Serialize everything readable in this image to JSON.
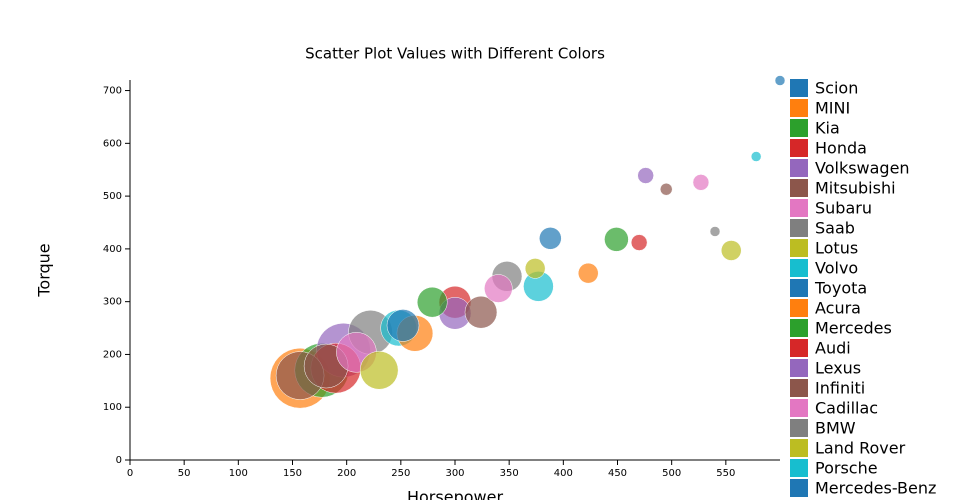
{
  "chart_data": {
    "type": "scatter",
    "title": "Scatter Plot Values with Different Colors",
    "x_label": "Horsepower",
    "y_label": "Torque",
    "xlim": [
      0,
      600
    ],
    "ylim": [
      0,
      720
    ],
    "xticks": [
      0,
      50,
      100,
      150,
      200,
      250,
      300,
      350,
      400,
      450,
      500,
      550
    ],
    "yticks": [
      0,
      100,
      200,
      300,
      400,
      500,
      600,
      700
    ],
    "legend": "right",
    "series": [
      {
        "name": "Scion",
        "color": "#1f77b4",
        "x": [
          388
        ],
        "values": [
          420
        ],
        "sizes": [
          11
        ]
      },
      {
        "name": "MINI",
        "color": "#ff7f0e",
        "x": [
          423,
          157
        ],
        "values": [
          354,
          155
        ],
        "sizes": [
          10,
          30
        ]
      },
      {
        "name": "Kia",
        "color": "#2ca02c",
        "x": [
          449,
          177
        ],
        "values": [
          418,
          170
        ],
        "sizes": [
          12,
          27
        ]
      },
      {
        "name": "Honda",
        "color": "#d62728",
        "x": [
          470,
          190
        ],
        "values": [
          412,
          174
        ],
        "sizes": [
          8,
          25
        ]
      },
      {
        "name": "Volkswagen",
        "color": "#9467bd",
        "x": [
          476,
          197
        ],
        "values": [
          539,
          208
        ],
        "sizes": [
          8,
          27
        ]
      },
      {
        "name": "Mitsubishi",
        "color": "#8c564b",
        "x": [
          495,
          181
        ],
        "values": [
          513,
          178
        ],
        "sizes": [
          6,
          22
        ]
      },
      {
        "name": "Subaru",
        "color": "#e377c2",
        "x": [
          527,
          209
        ],
        "values": [
          526,
          204
        ],
        "sizes": [
          8,
          20
        ]
      },
      {
        "name": "Saab",
        "color": "#7f7f7f",
        "x": [
          540,
          222
        ],
        "values": [
          433,
          242
        ],
        "sizes": [
          5,
          22
        ]
      },
      {
        "name": "Lotus",
        "color": "#bcbd22",
        "x": [
          555,
          230
        ],
        "values": [
          397,
          170
        ],
        "sizes": [
          10,
          19
        ]
      },
      {
        "name": "Volvo",
        "color": "#17becf",
        "x": [
          578,
          248
        ],
        "values": [
          575,
          250
        ],
        "sizes": [
          5,
          18
        ]
      },
      {
        "name": "Toyota",
        "color": "#1f77b4",
        "x": [
          252
        ],
        "values": [
          255
        ],
        "sizes": [
          16
        ]
      },
      {
        "name": "Acura",
        "color": "#ff7f0e",
        "x": [
          263
        ],
        "values": [
          240
        ],
        "sizes": [
          18
        ]
      },
      {
        "name": "Mercedes",
        "color": "#2ca02c",
        "x": [
          279
        ],
        "values": [
          299
        ],
        "sizes": [
          15
        ]
      },
      {
        "name": "Audi",
        "color": "#d62728",
        "x": [
          300
        ],
        "values": [
          299
        ],
        "sizes": [
          16
        ]
      },
      {
        "name": "Lexus",
        "color": "#9467bd",
        "x": [
          300
        ],
        "values": [
          278
        ],
        "sizes": [
          16
        ]
      },
      {
        "name": "Infiniti",
        "color": "#8c564b",
        "x": [
          324,
          157
        ],
        "values": [
          280,
          160
        ],
        "sizes": [
          16,
          24
        ]
      },
      {
        "name": "Cadillac",
        "color": "#e377c2",
        "x": [
          340
        ],
        "values": [
          325
        ],
        "sizes": [
          14
        ]
      },
      {
        "name": "BMW",
        "color": "#7f7f7f",
        "x": [
          348
        ],
        "values": [
          348
        ],
        "sizes": [
          15
        ]
      },
      {
        "name": "Land Rover",
        "color": "#bcbd22",
        "x": [
          374
        ],
        "values": [
          363
        ],
        "sizes": [
          10
        ]
      },
      {
        "name": "Porsche",
        "color": "#17becf",
        "x": [
          377
        ],
        "values": [
          329
        ],
        "sizes": [
          15
        ]
      },
      {
        "name": "Mercedes-Benz",
        "color": "#1f77b4",
        "x": [
          600
        ],
        "values": [
          719
        ],
        "sizes": [
          5
        ]
      }
    ]
  }
}
